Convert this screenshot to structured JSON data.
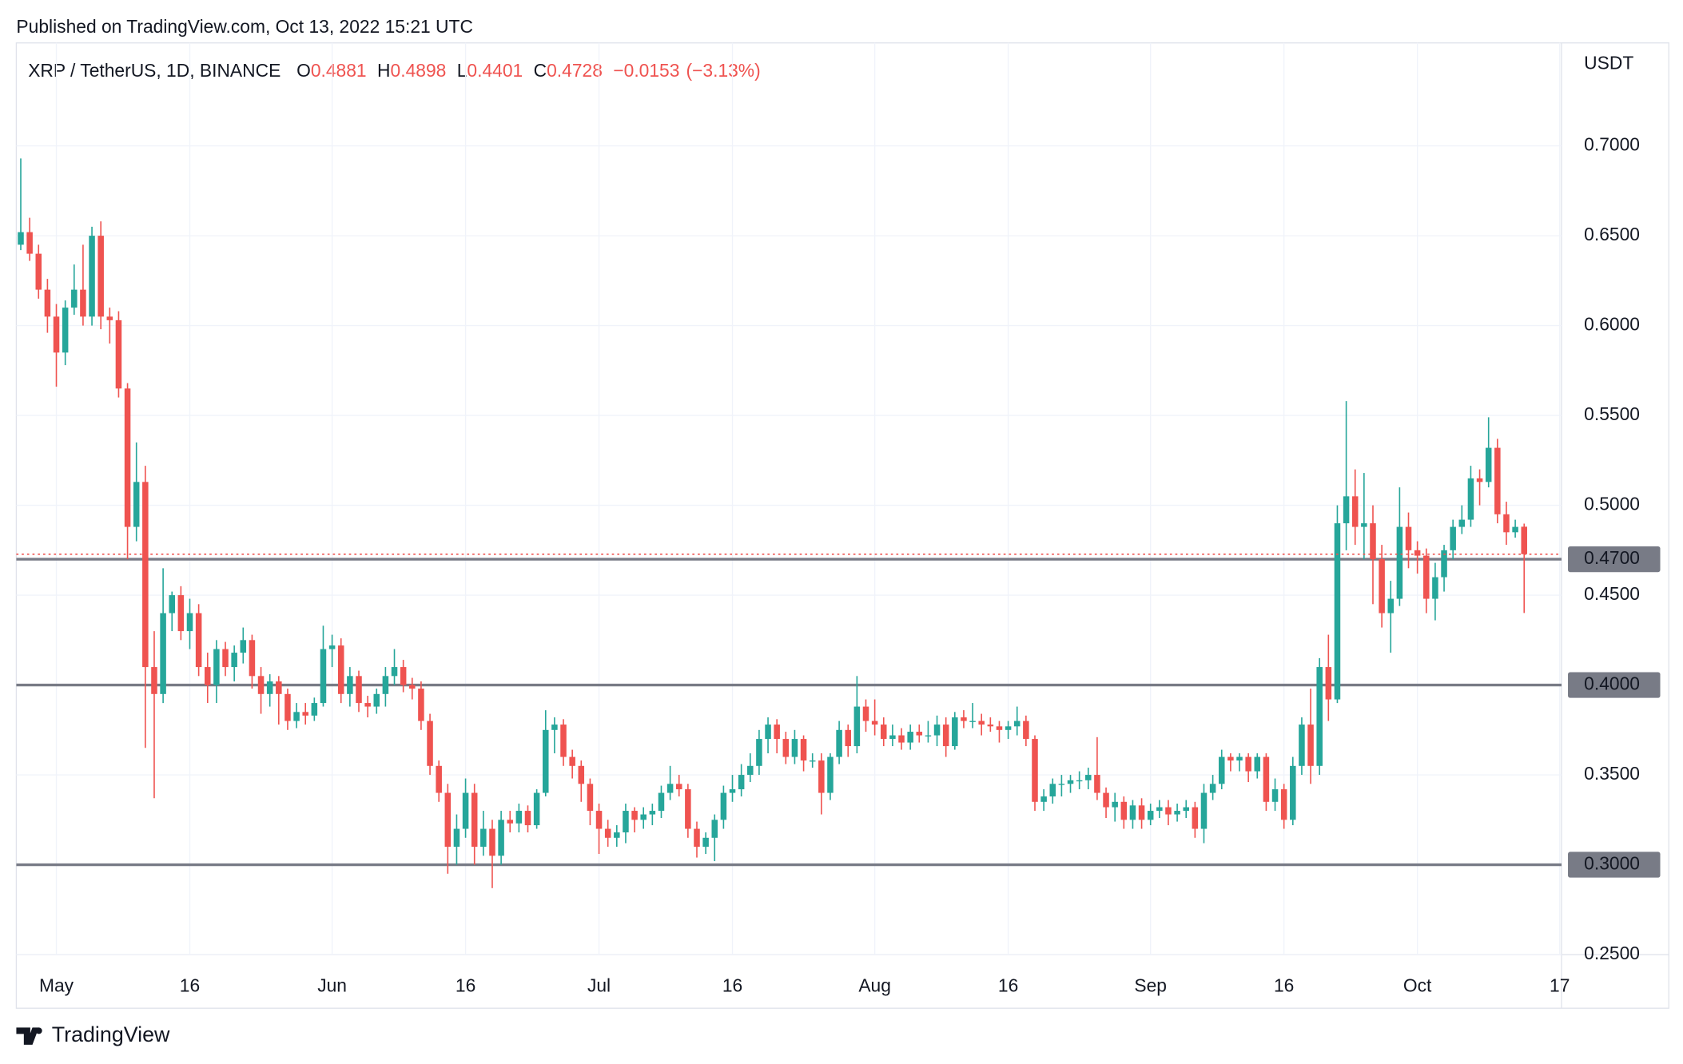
{
  "published": "Published on TradingView.com, Oct 13, 2022 15:21 UTC",
  "footer": "TradingView",
  "chart_data": {
    "type": "candlestick",
    "legend_header": {
      "symbol": "XRP / TetherUS, 1D, BINANCE",
      "ohlc": [
        {
          "key": "O",
          "value": "0.4881"
        },
        {
          "key": "H",
          "value": "0.4898"
        },
        {
          "key": "L",
          "value": "0.4401"
        },
        {
          "key": "C",
          "value": "0.4728"
        }
      ],
      "change": "−0.0153",
      "change_pct": "(−3.13%)"
    },
    "y_axis_label": "USDT",
    "up_color": "#26a69a",
    "down_color": "#ef5350",
    "grid": true,
    "xlim": [
      -0.5,
      173.2
    ],
    "xticks": [
      {
        "value": 4,
        "label": "May"
      },
      {
        "value": 19,
        "label": "16"
      },
      {
        "value": 35,
        "label": "Jun"
      },
      {
        "value": 50,
        "label": "16"
      },
      {
        "value": 65,
        "label": "Jul"
      },
      {
        "value": 80,
        "label": "16"
      },
      {
        "value": 96,
        "label": "Aug"
      },
      {
        "value": 111,
        "label": "16"
      },
      {
        "value": 127,
        "label": "Sep"
      },
      {
        "value": 142,
        "label": "16"
      },
      {
        "value": 157,
        "label": "Oct"
      },
      {
        "value": 173,
        "label": "17"
      }
    ],
    "ylim": [
      0.25,
      0.7573
    ],
    "yticks": [
      {
        "value": 0.25,
        "label": "0.2500"
      },
      {
        "value": 0.3,
        "label": "0.3000"
      },
      {
        "value": 0.35,
        "label": "0.3500"
      },
      {
        "value": 0.4,
        "label": "0.4000"
      },
      {
        "value": 0.45,
        "label": "0.4500"
      },
      {
        "value": 0.5,
        "label": "0.5000"
      },
      {
        "value": 0.55,
        "label": "0.5500"
      },
      {
        "value": 0.6,
        "label": "0.6000"
      },
      {
        "value": 0.65,
        "label": "0.6500"
      },
      {
        "value": 0.7,
        "label": "0.7000"
      }
    ],
    "levels": [
      {
        "value": 0.47,
        "label": "0.4700"
      },
      {
        "value": 0.4,
        "label": "0.4000"
      },
      {
        "value": 0.3,
        "label": "0.3000"
      }
    ],
    "open": [
      0.645,
      0.652,
      0.64,
      0.62,
      0.605,
      0.585,
      0.61,
      0.62,
      0.605,
      0.65,
      0.605,
      0.603,
      0.565,
      0.488,
      0.513,
      0.41,
      0.395,
      0.44,
      0.45,
      0.43,
      0.44,
      0.41,
      0.4,
      0.42,
      0.41,
      0.418,
      0.425,
      0.405,
      0.395,
      0.402,
      0.395,
      0.38,
      0.385,
      0.383,
      0.39,
      0.42,
      0.422,
      0.395,
      0.405,
      0.39,
      0.388,
      0.395,
      0.405,
      0.41,
      0.4,
      0.398,
      0.38,
      0.355,
      0.34,
      0.31,
      0.32,
      0.34,
      0.31,
      0.32,
      0.305,
      0.325,
      0.323,
      0.33,
      0.322,
      0.34,
      0.375,
      0.378,
      0.36,
      0.355,
      0.345,
      0.33,
      0.32,
      0.315,
      0.318,
      0.33,
      0.325,
      0.328,
      0.33,
      0.34,
      0.345,
      0.342,
      0.32,
      0.31,
      0.315,
      0.325,
      0.34,
      0.342,
      0.35,
      0.355,
      0.37,
      0.378,
      0.37,
      0.36,
      0.37,
      0.358,
      0.358,
      0.34,
      0.36,
      0.375,
      0.366,
      0.388,
      0.38,
      0.378,
      0.37,
      0.372,
      0.368,
      0.374,
      0.372,
      0.372,
      0.378,
      0.366,
      0.382,
      0.38,
      0.38,
      0.378,
      0.377,
      0.375,
      0.377,
      0.38,
      0.37,
      0.335,
      0.338,
      0.345,
      0.345,
      0.347,
      0.347,
      0.35,
      0.34,
      0.332,
      0.335,
      0.325,
      0.333,
      0.325,
      0.33,
      0.332,
      0.328,
      0.33,
      0.332,
      0.32,
      0.34,
      0.345,
      0.36,
      0.358,
      0.36,
      0.352,
      0.36,
      0.335,
      0.342,
      0.325,
      0.355,
      0.378,
      0.355,
      0.41,
      0.392,
      0.49,
      0.505,
      0.488,
      0.49,
      0.47,
      0.44,
      0.448,
      0.488,
      0.475,
      0.472,
      0.448,
      0.46,
      0.475,
      0.488,
      0.492,
      0.515,
      0.513,
      0.532,
      0.495,
      0.485,
      0.4881
    ],
    "high": [
      0.693,
      0.66,
      0.645,
      0.626,
      0.612,
      0.614,
      0.634,
      0.645,
      0.655,
      0.658,
      0.61,
      0.608,
      0.568,
      0.535,
      0.522,
      0.43,
      0.465,
      0.452,
      0.455,
      0.448,
      0.445,
      0.418,
      0.425,
      0.424,
      0.422,
      0.432,
      0.428,
      0.41,
      0.406,
      0.405,
      0.398,
      0.39,
      0.39,
      0.393,
      0.433,
      0.428,
      0.426,
      0.41,
      0.408,
      0.394,
      0.398,
      0.41,
      0.42,
      0.414,
      0.404,
      0.402,
      0.384,
      0.358,
      0.345,
      0.328,
      0.348,
      0.345,
      0.33,
      0.325,
      0.33,
      0.33,
      0.334,
      0.333,
      0.342,
      0.386,
      0.382,
      0.381,
      0.364,
      0.358,
      0.348,
      0.334,
      0.325,
      0.322,
      0.334,
      0.332,
      0.332,
      0.334,
      0.344,
      0.355,
      0.35,
      0.345,
      0.324,
      0.318,
      0.328,
      0.344,
      0.35,
      0.356,
      0.362,
      0.375,
      0.382,
      0.381,
      0.374,
      0.375,
      0.372,
      0.362,
      0.362,
      0.362,
      0.38,
      0.378,
      0.405,
      0.392,
      0.392,
      0.382,
      0.378,
      0.376,
      0.378,
      0.378,
      0.38,
      0.383,
      0.382,
      0.385,
      0.386,
      0.39,
      0.384,
      0.382,
      0.38,
      0.38,
      0.388,
      0.383,
      0.372,
      0.342,
      0.348,
      0.35,
      0.35,
      0.352,
      0.354,
      0.371,
      0.343,
      0.34,
      0.338,
      0.336,
      0.337,
      0.334,
      0.336,
      0.336,
      0.334,
      0.336,
      0.335,
      0.345,
      0.35,
      0.364,
      0.362,
      0.362,
      0.362,
      0.362,
      0.362,
      0.348,
      0.345,
      0.36,
      0.382,
      0.398,
      0.415,
      0.428,
      0.5,
      0.558,
      0.52,
      0.518,
      0.5,
      0.478,
      0.458,
      0.51,
      0.496,
      0.48,
      0.476,
      0.468,
      0.478,
      0.492,
      0.5,
      0.522,
      0.52,
      0.549,
      0.537,
      0.502,
      0.492,
      0.4898
    ],
    "low": [
      0.642,
      0.636,
      0.615,
      0.596,
      0.566,
      0.578,
      0.606,
      0.6,
      0.6,
      0.598,
      0.59,
      0.56,
      0.47,
      0.48,
      0.365,
      0.337,
      0.39,
      0.43,
      0.425,
      0.42,
      0.405,
      0.39,
      0.39,
      0.405,
      0.402,
      0.412,
      0.398,
      0.384,
      0.388,
      0.378,
      0.375,
      0.376,
      0.378,
      0.38,
      0.388,
      0.41,
      0.39,
      0.388,
      0.385,
      0.382,
      0.384,
      0.388,
      0.4,
      0.396,
      0.392,
      0.375,
      0.35,
      0.335,
      0.295,
      0.3,
      0.315,
      0.3,
      0.305,
      0.287,
      0.3,
      0.318,
      0.318,
      0.318,
      0.32,
      0.338,
      0.362,
      0.355,
      0.348,
      0.335,
      0.322,
      0.306,
      0.31,
      0.31,
      0.312,
      0.318,
      0.32,
      0.322,
      0.326,
      0.336,
      0.338,
      0.315,
      0.304,
      0.306,
      0.302,
      0.32,
      0.335,
      0.338,
      0.346,
      0.35,
      0.362,
      0.362,
      0.356,
      0.356,
      0.352,
      0.354,
      0.328,
      0.336,
      0.356,
      0.36,
      0.362,
      0.374,
      0.372,
      0.366,
      0.366,
      0.364,
      0.364,
      0.368,
      0.368,
      0.366,
      0.36,
      0.364,
      0.376,
      0.376,
      0.372,
      0.374,
      0.368,
      0.37,
      0.372,
      0.366,
      0.33,
      0.33,
      0.334,
      0.338,
      0.34,
      0.342,
      0.342,
      0.336,
      0.326,
      0.324,
      0.32,
      0.32,
      0.32,
      0.322,
      0.326,
      0.322,
      0.324,
      0.326,
      0.315,
      0.312,
      0.336,
      0.342,
      0.352,
      0.352,
      0.346,
      0.348,
      0.33,
      0.33,
      0.32,
      0.322,
      0.35,
      0.345,
      0.35,
      0.38,
      0.39,
      0.475,
      0.478,
      0.47,
      0.445,
      0.432,
      0.418,
      0.444,
      0.465,
      0.462,
      0.44,
      0.436,
      0.452,
      0.47,
      0.484,
      0.488,
      0.5,
      0.51,
      0.49,
      0.478,
      0.482,
      0.4401
    ],
    "close": [
      0.652,
      0.64,
      0.62,
      0.605,
      0.585,
      0.61,
      0.62,
      0.605,
      0.65,
      0.605,
      0.603,
      0.565,
      0.488,
      0.513,
      0.41,
      0.395,
      0.44,
      0.45,
      0.43,
      0.44,
      0.41,
      0.4,
      0.42,
      0.41,
      0.418,
      0.425,
      0.405,
      0.395,
      0.402,
      0.395,
      0.38,
      0.385,
      0.383,
      0.39,
      0.42,
      0.422,
      0.395,
      0.405,
      0.39,
      0.388,
      0.395,
      0.405,
      0.41,
      0.4,
      0.398,
      0.38,
      0.355,
      0.34,
      0.31,
      0.32,
      0.34,
      0.31,
      0.32,
      0.305,
      0.325,
      0.323,
      0.33,
      0.322,
      0.34,
      0.375,
      0.378,
      0.36,
      0.355,
      0.345,
      0.33,
      0.32,
      0.315,
      0.318,
      0.33,
      0.325,
      0.328,
      0.33,
      0.34,
      0.345,
      0.342,
      0.32,
      0.31,
      0.315,
      0.325,
      0.34,
      0.342,
      0.35,
      0.355,
      0.37,
      0.378,
      0.37,
      0.36,
      0.37,
      0.358,
      0.358,
      0.34,
      0.36,
      0.375,
      0.366,
      0.388,
      0.38,
      0.378,
      0.37,
      0.372,
      0.368,
      0.374,
      0.372,
      0.372,
      0.378,
      0.366,
      0.382,
      0.38,
      0.38,
      0.378,
      0.377,
      0.375,
      0.377,
      0.38,
      0.37,
      0.335,
      0.338,
      0.345,
      0.345,
      0.347,
      0.347,
      0.35,
      0.34,
      0.332,
      0.335,
      0.325,
      0.333,
      0.325,
      0.33,
      0.332,
      0.328,
      0.33,
      0.332,
      0.32,
      0.34,
      0.345,
      0.36,
      0.358,
      0.36,
      0.352,
      0.36,
      0.335,
      0.342,
      0.325,
      0.355,
      0.378,
      0.355,
      0.41,
      0.392,
      0.49,
      0.505,
      0.488,
      0.49,
      0.47,
      0.44,
      0.448,
      0.488,
      0.475,
      0.472,
      0.448,
      0.46,
      0.475,
      0.488,
      0.492,
      0.515,
      0.513,
      0.532,
      0.495,
      0.485,
      0.488,
      0.4728
    ]
  }
}
